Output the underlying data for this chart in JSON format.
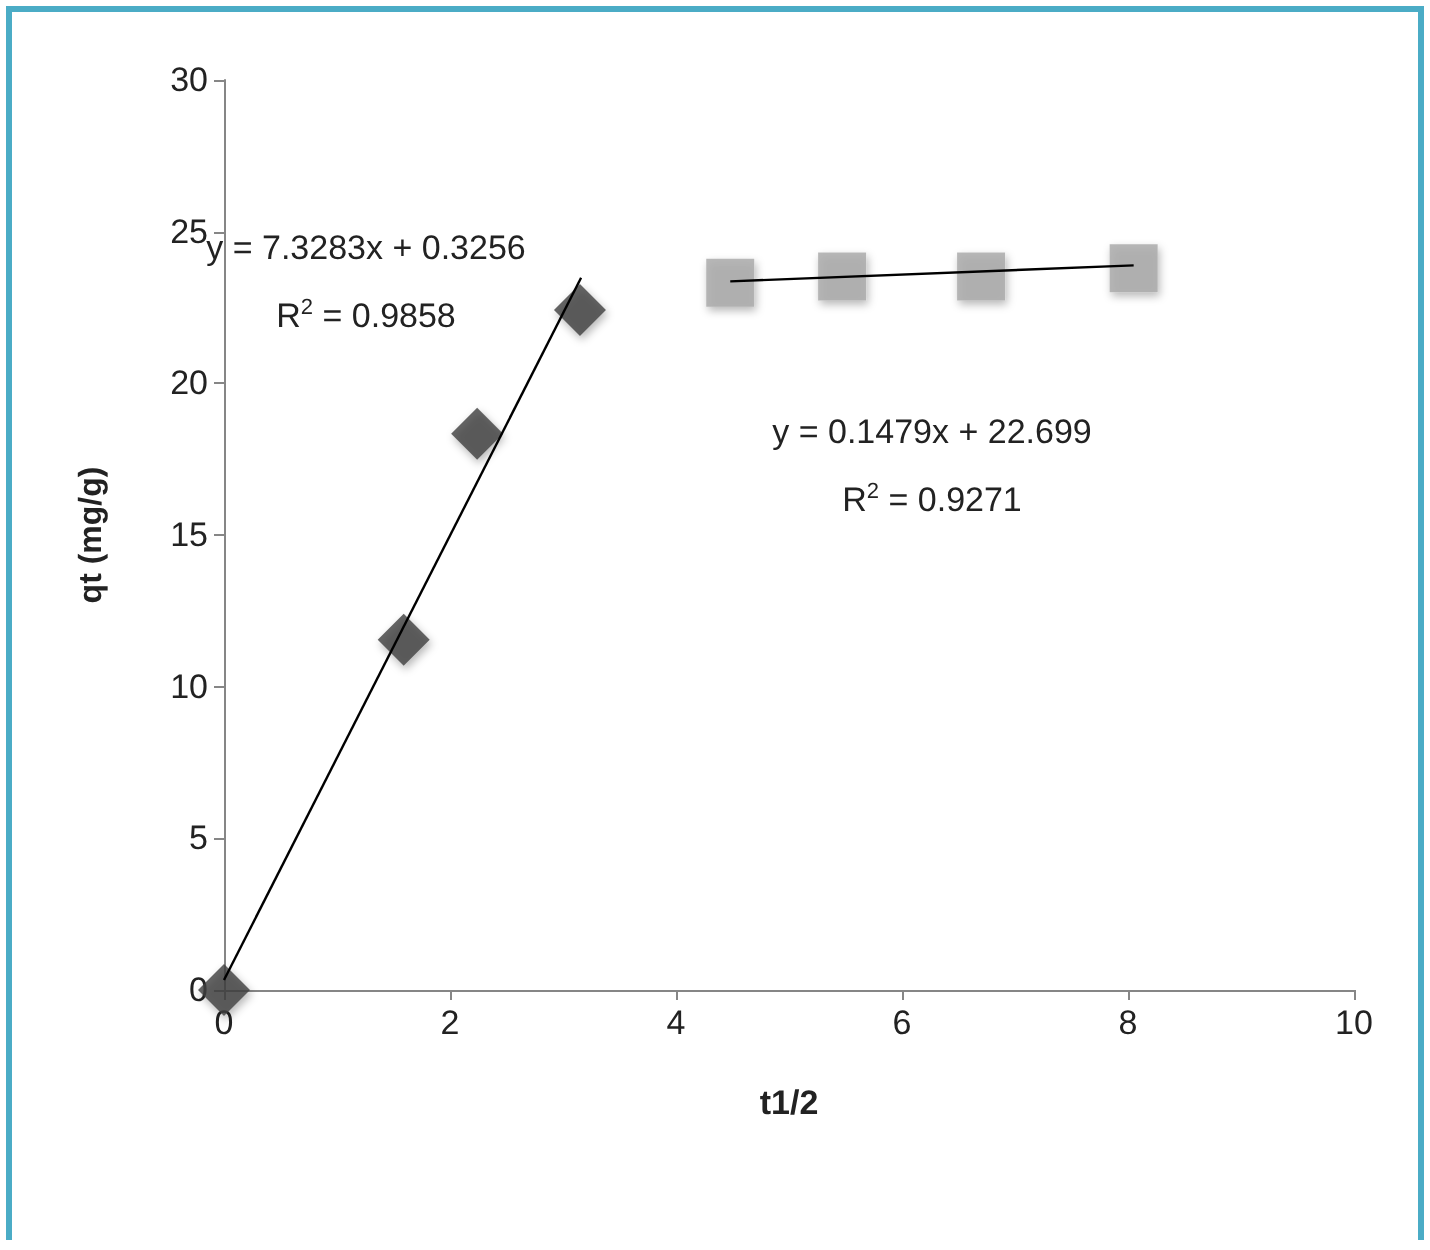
{
  "chart_data": {
    "type": "scatter",
    "xlabel": "t1/2",
    "ylabel": "qt (mg/g)",
    "xlim": [
      0,
      10
    ],
    "xticks": [
      0,
      2,
      4,
      6,
      8,
      10
    ],
    "ylim": [
      0,
      30
    ],
    "yticks": [
      0,
      5,
      10,
      15,
      20,
      25,
      30
    ],
    "grid": false,
    "series": [
      {
        "marker": "diamond",
        "color": "#404040",
        "x": [
          0,
          1.59,
          2.24,
          3.15
        ],
        "values": [
          0,
          11.55,
          18.34,
          22.42
        ]
      },
      {
        "marker": "square",
        "color": "#a6a6a6",
        "x": [
          4.48,
          5.47,
          6.7,
          8.05
        ],
        "values": [
          23.32,
          23.52,
          23.52,
          23.79
        ]
      },
      {
        "type": "line",
        "marker": "none",
        "line_style": "solid",
        "color": "#000000",
        "x": [
          0,
          3.16
        ],
        "values": [
          0.33,
          23.48
        ]
      },
      {
        "type": "line",
        "marker": "none",
        "line_style": "solid",
        "color": "#000000",
        "x": [
          4.48,
          8.05
        ],
        "values": [
          23.36,
          23.89
        ]
      }
    ],
    "annotations": [
      "y = 7.3283x + 0.3256",
      "R$^{2}$ = 0.9858",
      "y = 0.1479x + 22.699",
      "R$^{2}$ = 0.9271"
    ]
  }
}
